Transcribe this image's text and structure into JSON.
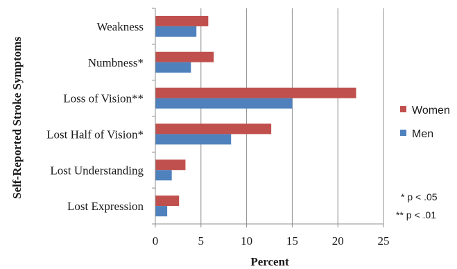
{
  "chart_data": {
    "type": "bar",
    "orientation": "horizontal",
    "categories": [
      "Weakness",
      "Numbness*",
      "Loss of Vision**",
      "Lost Half of Vision*",
      "Lost Understanding",
      "Lost Expression"
    ],
    "series": [
      {
        "name": "Women",
        "color": "#c0504d",
        "values": [
          5.8,
          6.4,
          22.0,
          12.7,
          3.3,
          2.6
        ]
      },
      {
        "name": "Men",
        "color": "#4f81bd",
        "values": [
          4.5,
          3.9,
          15.0,
          8.3,
          1.8,
          1.3
        ]
      }
    ],
    "xlabel": "Percent",
    "ylabel": "Self-Reported Stroke Symptoms",
    "xlim": [
      0,
      25
    ],
    "xticks": [
      "0",
      "5",
      "10",
      "15",
      "20",
      "25"
    ],
    "grid": "vertical",
    "legend_position": "right",
    "notes": [
      "* p < .05",
      "** p < .01"
    ]
  }
}
